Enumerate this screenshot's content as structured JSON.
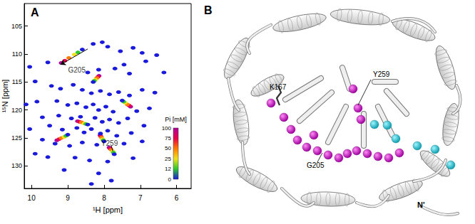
{
  "chart_data": {
    "type": "scatter",
    "title": "A",
    "x_label": "¹H [ppm]",
    "y_label": "¹⁵N [ppm]",
    "xlim": [
      10.2,
      5.6
    ],
    "xticks": [
      10,
      9,
      8,
      7,
      6
    ],
    "ylim": [
      101,
      134
    ],
    "yticks": [
      105,
      110,
      115,
      120,
      125,
      130
    ],
    "grid": false,
    "marker": "ellipse",
    "colorbar": {
      "title": "Pi [mM]",
      "ticks": [
        0,
        12,
        25,
        50,
        75,
        100
      ]
    },
    "series": [
      {
        "name": "0",
        "color": "#1a1adc",
        "x": [
          10.05,
          9.55,
          8.05,
          8.3,
          7.9,
          7.55,
          7.2,
          6.95,
          6.55,
          6.85,
          7.45,
          7.7,
          8.15,
          8.45,
          7.3,
          6.35,
          9.9,
          9.45,
          9.2,
          8.85,
          8.6,
          8.35,
          8.1,
          7.85,
          7.6,
          7.3,
          6.95,
          6.6,
          10.15,
          9.85,
          9.3,
          9.0,
          8.75,
          8.5,
          8.3,
          8.15,
          7.95,
          7.75,
          7.1,
          6.75,
          9.7,
          9.25,
          8.9,
          8.65,
          8.25,
          8.05,
          7.85,
          7.6,
          7.35,
          6.9,
          10.05,
          9.5,
          9.15,
          8.75,
          8.55,
          8.35,
          8.1,
          7.9,
          7.65,
          7.25,
          9.7,
          9.35,
          8.95,
          8.6,
          8.2,
          7.45,
          6.95,
          9.9,
          9.55,
          8.8,
          8.4,
          7.9,
          7.2,
          9.1,
          8.15,
          7.8,
          8.35,
          8.6,
          7.72,
          9.0,
          8.45,
          7.5,
          8.3,
          8.0
        ],
        "values": [
          112.3,
          111.5,
          107.9,
          108.2,
          108.7,
          109.5,
          108.9,
          109.8,
          110.2,
          111.3,
          111.9,
          112.6,
          112.8,
          113.3,
          113.5,
          113.3,
          114.9,
          115.7,
          116.2,
          115.5,
          116.4,
          117.0,
          116.6,
          117.2,
          116.8,
          117.4,
          116.4,
          116.9,
          119.0,
          118.5,
          118.4,
          119.1,
          118.8,
          119.5,
          119.0,
          120.0,
          119.4,
          120.3,
          120.2,
          119.7,
          121.3,
          121.0,
          121.5,
          121.2,
          121.4,
          122.1,
          121.7,
          122.3,
          121.5,
          122.8,
          123.4,
          122.8,
          123.5,
          123.2,
          124.0,
          123.4,
          124.2,
          123.7,
          124.6,
          124.1,
          125.3,
          126.0,
          126.4,
          125.8,
          126.2,
          126.0,
          125.6,
          127.8,
          128.4,
          128.5,
          129.0,
          129.2,
          128.6,
          130.7,
          131.3,
          132.6,
          133.2,
          109.2,
          127.9,
          124.4,
          122.6,
          118.3,
          115.0,
          125.6
        ]
      },
      {
        "name": "12",
        "color": "#2fc82f",
        "x": [
          8.72,
          7.74,
          9.05,
          8.5,
          7.46,
          8.27,
          8.02
        ],
        "values": [
          109.7,
          127.6,
          124.6,
          122.5,
          118.5,
          114.8,
          125.4
        ]
      },
      {
        "name": "25",
        "color": "#f0e020",
        "x": [
          8.82,
          7.76,
          9.1,
          8.55,
          7.42,
          8.24,
          8.04
        ],
        "values": [
          110.1,
          127.4,
          124.8,
          122.4,
          118.7,
          114.6,
          125.2
        ]
      },
      {
        "name": "50",
        "color": "#ff7a00",
        "x": [
          8.97,
          7.8,
          9.18,
          8.62,
          7.36,
          8.2,
          8.07
        ],
        "values": [
          110.7,
          127.1,
          125.0,
          122.2,
          119.0,
          114.3,
          124.9
        ]
      },
      {
        "name": "75",
        "color": "#e8004a",
        "x": [
          9.08,
          7.83,
          9.24,
          8.68,
          7.31,
          8.17,
          8.09
        ],
        "values": [
          111.2,
          126.9,
          125.2,
          122.1,
          119.2,
          114.1,
          124.7
        ]
      },
      {
        "name": "100",
        "color": "#b0009a",
        "x": [
          9.18,
          7.86,
          9.3,
          8.73,
          7.27,
          8.14,
          8.11
        ],
        "values": [
          111.6,
          126.7,
          125.4,
          122.0,
          119.4,
          113.9,
          124.5
        ]
      }
    ],
    "annotations": [
      {
        "text": "G205",
        "x": 8.75,
        "y": 112.9,
        "from": [
          8.45,
          109.1
        ],
        "to": [
          9.2,
          111.9
        ],
        "marker": "arrow"
      },
      {
        "text": "Y259",
        "x": 7.85,
        "y": 125.9,
        "from": [
          7.8,
          126.4
        ],
        "to": [
          7.76,
          127.3
        ],
        "marker": "none"
      }
    ]
  },
  "structure": {
    "label": "B",
    "residues": [
      "K167",
      "Y259",
      "G205"
    ],
    "terminus": "N'"
  }
}
